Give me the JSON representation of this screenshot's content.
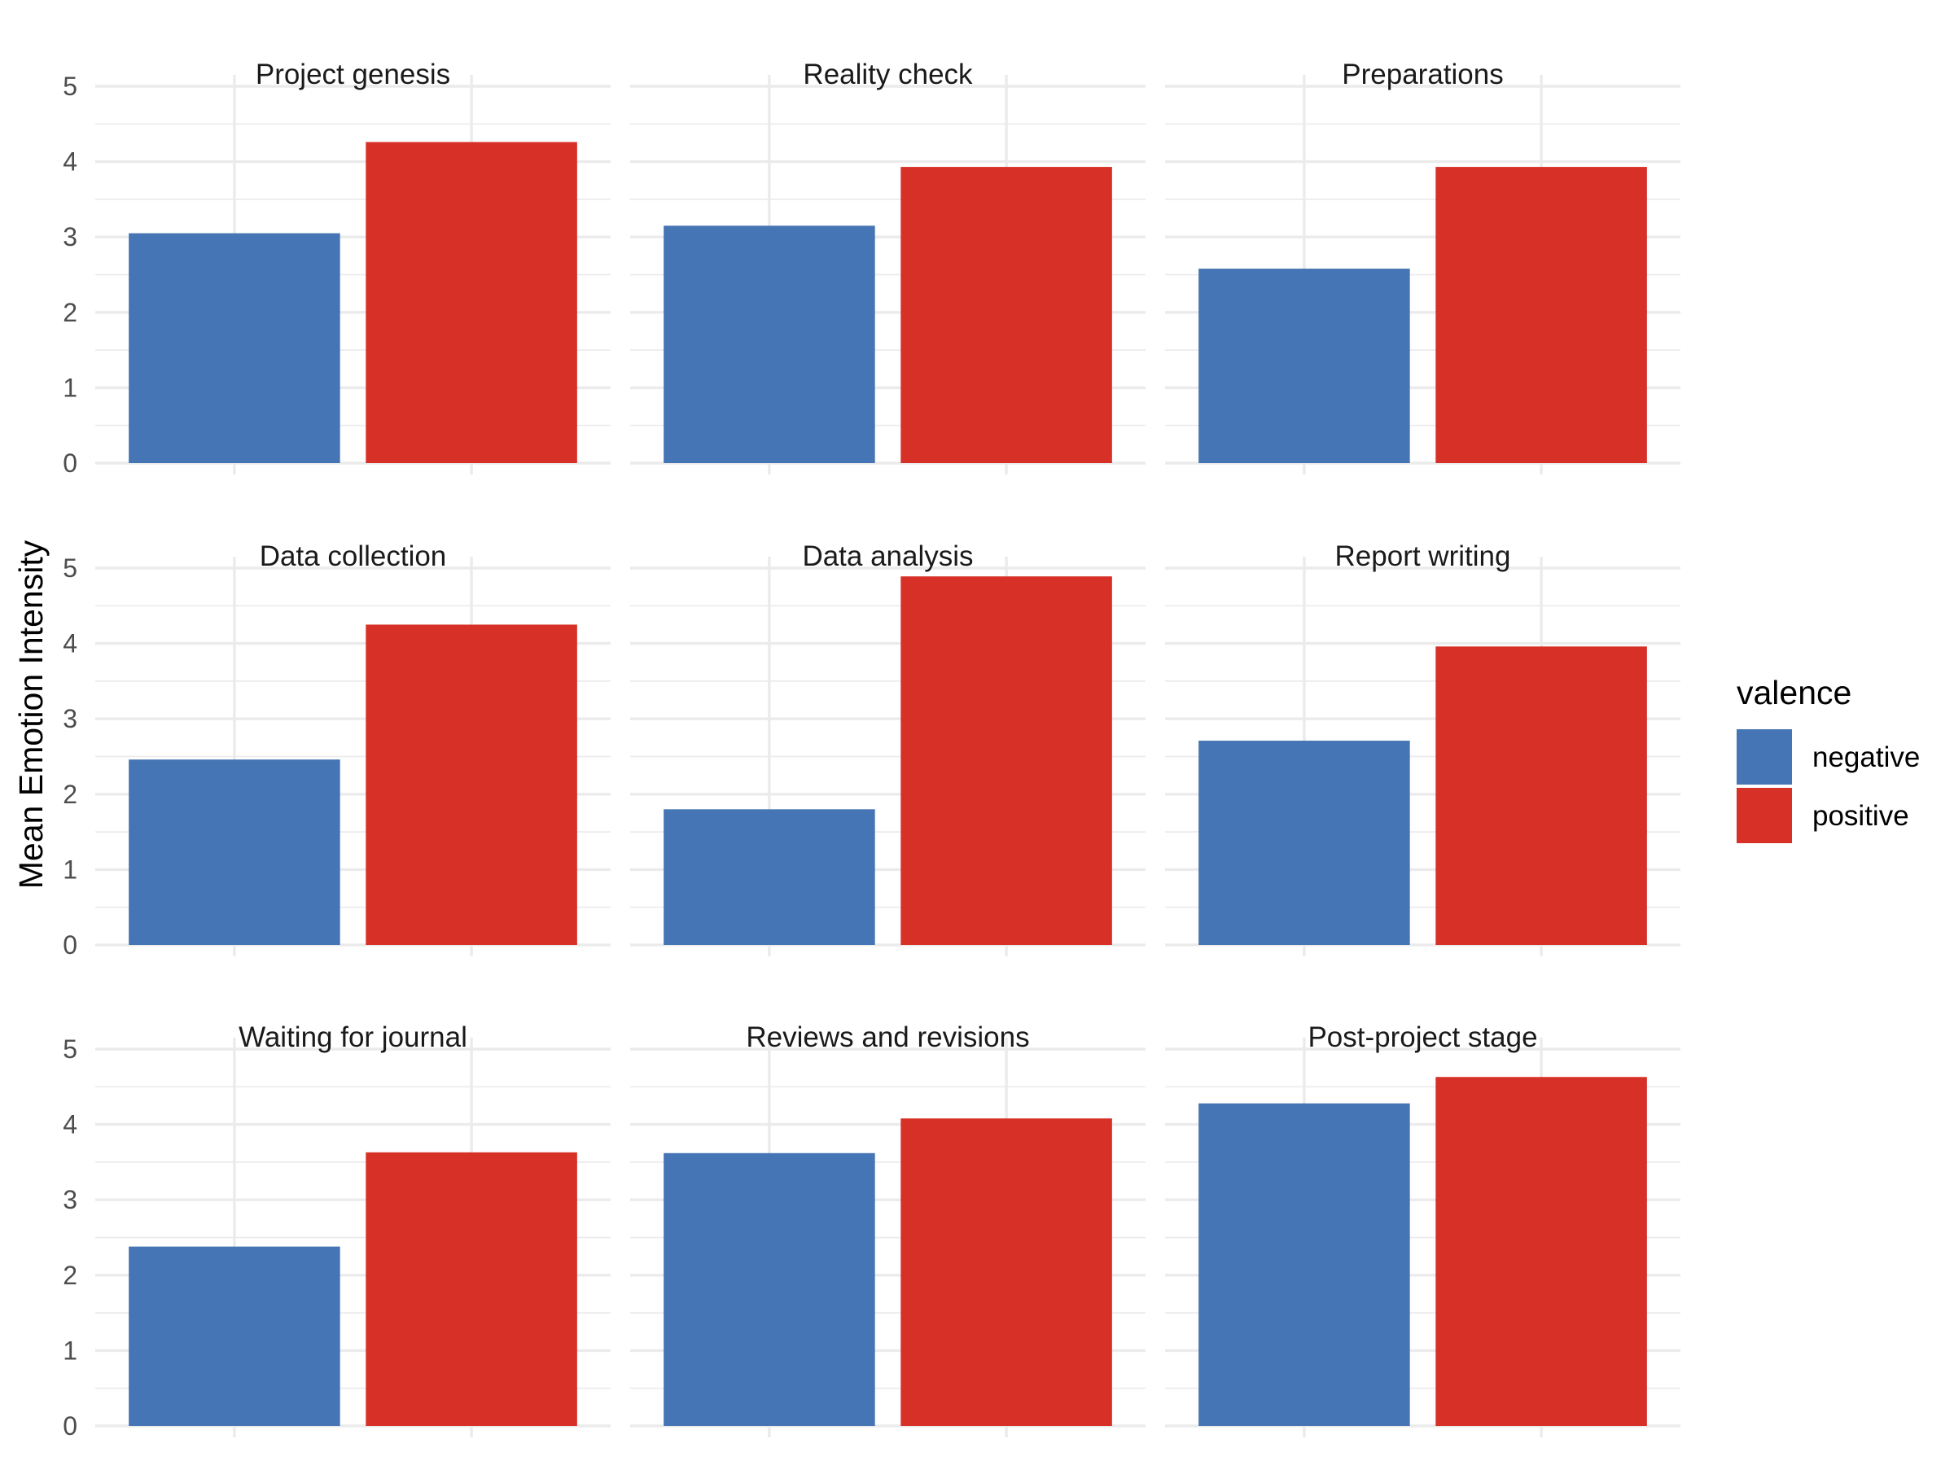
{
  "chart_data": {
    "type": "bar",
    "ylabel": "Mean Emotion Intensity",
    "ylim": [
      0,
      5
    ],
    "yticks": [
      0,
      1,
      2,
      3,
      4,
      5
    ],
    "grid": true,
    "legend": {
      "title": "valence",
      "position": "right",
      "items": [
        {
          "name": "negative",
          "color": "#4575b4"
        },
        {
          "name": "positive",
          "color": "#d73027"
        }
      ]
    },
    "categories": [
      "negative",
      "positive"
    ],
    "panels": [
      {
        "title": "Project genesis",
        "values": [
          3.05,
          4.26
        ]
      },
      {
        "title": "Reality check",
        "values": [
          3.15,
          3.93
        ]
      },
      {
        "title": "Preparations",
        "values": [
          2.58,
          3.93
        ]
      },
      {
        "title": "Data collection",
        "values": [
          2.46,
          4.25
        ]
      },
      {
        "title": "Data analysis",
        "values": [
          1.8,
          4.89
        ]
      },
      {
        "title": "Report writing",
        "values": [
          2.71,
          3.96
        ]
      },
      {
        "title": "Waiting for journal",
        "values": [
          2.38,
          3.63
        ]
      },
      {
        "title": "Reviews and revisions",
        "values": [
          3.62,
          4.08
        ]
      },
      {
        "title": "Post-project stage",
        "values": [
          4.28,
          4.63
        ]
      }
    ]
  }
}
